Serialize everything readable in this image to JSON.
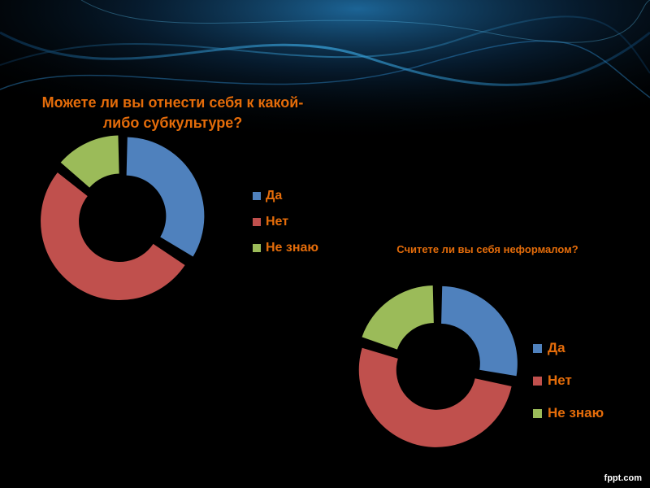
{
  "colors": {
    "background": "#000000",
    "title": "#e46c0a",
    "series": [
      "#4f81bd",
      "#c0504d",
      "#9bbb59"
    ]
  },
  "chart_data": [
    {
      "type": "donut",
      "title": "Можете ли вы отнести себя к какой-либо субкультуре?",
      "categories": [
        "Да",
        "Нет",
        "Не знаю"
      ],
      "values": [
        34,
        52,
        14
      ],
      "legend_position": "right"
    },
    {
      "type": "donut",
      "title": "Считете ли вы себя неформалом?",
      "categories": [
        "Да",
        "Нет",
        "Не знаю"
      ],
      "values": [
        28,
        52,
        20
      ],
      "legend_position": "right"
    }
  ],
  "watermark": "fppt.com"
}
